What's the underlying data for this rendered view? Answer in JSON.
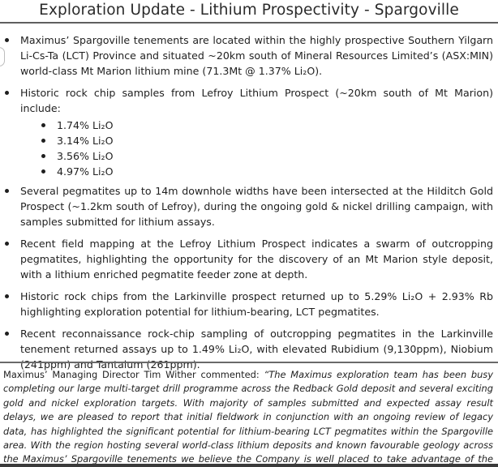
{
  "title": "Exploration Update - Lithium Prospectivity - Spargoville",
  "bullets": [
    {
      "text": "Maximus’ Spargoville tenements are located within the highly prospective Southern Yilgarn Li-Cs-Ta (LCT) Province and situated ~20km south of Mineral Resources Limited’s (ASX:MIN) world-class Mt Marion lithium mine (71.3Mt @ 1.37% Li₂O)."
    },
    {
      "text": "Historic rock chip samples from Lefroy Lithium Prospect (~20km south of Mt Marion) include:",
      "sub": [
        "1.74% Li₂O",
        "3.14% Li₂O",
        "3.56% Li₂O",
        "4.97% Li₂O"
      ]
    },
    {
      "text": "Several pegmatites up to 14m downhole widths have been intersected at the Hilditch Gold Prospect (~1.2km south of Lefroy), during the ongoing gold & nickel drilling campaign, with samples submitted for lithium assays."
    },
    {
      "text": "Recent field mapping at the Lefroy Lithium Prospect indicates a swarm of outcropping pegmatites, highlighting the opportunity for the discovery of an Mt Marion style deposit, with a lithium enriched pegmatite feeder zone at depth."
    },
    {
      "text": "Historic rock chips from the Larkinville prospect returned up to 5.29% Li₂O + 2.93% Rb highlighting exploration potential for lithium-bearing, LCT pegmatites."
    },
    {
      "text": "Recent reconnaissance rock-chip sampling of outcropping pegmatites in the Larkinville tenement returned assays up to 1.49% Li₂O, with elevated Rubidium (9,130ppm), Niobium (241ppm) and Tantalum (261ppm)."
    }
  ],
  "quote": {
    "lead": "Maximus’ Managing Director Tim Wither commented: ",
    "text": "“The Maximus exploration team has been busy completing our large multi-target drill programme across the Redback Gold deposit and several exciting gold and nickel exploration targets. With majority of samples submitted and expected assay result delays, we are pleased to report that initial fieldwork in conjunction with an ongoing review of legacy data, has highlighted the significant potential for lithium-bearing LCT pegmatites within the Spargoville area. With the region hosting several world-class lithium deposits and known favourable geology across the Maximus’ Spargoville tenements we believe the Company is well placed to take advantage of the buoyant lithium market.”"
  }
}
